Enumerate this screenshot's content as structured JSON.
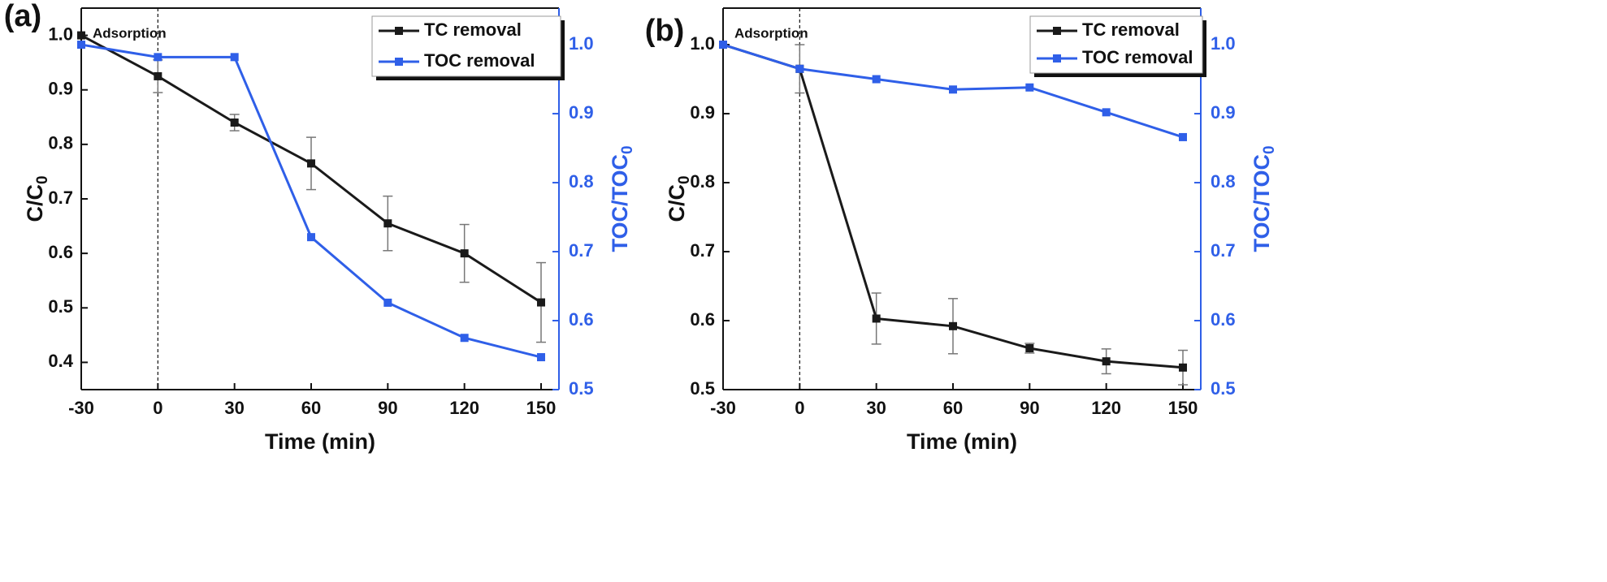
{
  "chart_data": [
    {
      "type": "line",
      "panel_label": "(a)",
      "annotation": {
        "text": "Adsorption",
        "x": 0
      },
      "xlabel": "Time (min)",
      "ylabel": {
        "main": "C/C",
        "sub": "0"
      },
      "y2label": {
        "main": "TOC/TOC",
        "sub": "0"
      },
      "x": [
        -30,
        0,
        30,
        60,
        90,
        120,
        150
      ],
      "series": [
        {
          "name": "TC removal",
          "color": "#1a1a1a",
          "axis": "y",
          "values": [
            1.0,
            0.925,
            0.84,
            0.765,
            0.655,
            0.6,
            0.51
          ],
          "errors": [
            null,
            0.03,
            0.015,
            0.048,
            0.05,
            0.053,
            0.073
          ]
        },
        {
          "name": "TOC removal",
          "color": "#2f5fe8",
          "axis": "y2",
          "values": [
            1.0,
            0.982,
            0.982,
            0.721,
            0.626,
            0.575,
            0.547
          ]
        }
      ],
      "xlim": [
        -30,
        157
      ],
      "xticks": [
        -30,
        0,
        30,
        60,
        90,
        120,
        150
      ],
      "ylim": [
        0.35,
        1.05
      ],
      "yticks": [
        0.4,
        0.5,
        0.6,
        0.7,
        0.8,
        0.9,
        {
          "value": 1,
          "label": "1.0"
        }
      ],
      "y2lim": [
        0.5,
        1.053
      ],
      "y2ticks": [
        0.5,
        0.6,
        0.7,
        0.8,
        0.9,
        {
          "value": 1,
          "label": "1.0"
        }
      ],
      "legend": "upper right"
    },
    {
      "type": "line",
      "panel_label": "(b)",
      "annotation": {
        "text": "Adsorption",
        "x": 0
      },
      "xlabel": "Time (min)",
      "ylabel": {
        "main": "C/C",
        "sub": "0"
      },
      "y2label": {
        "main": "TOC/TOC",
        "sub": "0"
      },
      "x": [
        -30,
        0,
        30,
        60,
        90,
        120,
        150
      ],
      "series": [
        {
          "name": "TC removal",
          "color": "#1a1a1a",
          "axis": "y",
          "values": [
            1.0,
            0.965,
            0.603,
            0.592,
            0.56,
            0.541,
            0.532
          ],
          "errors": [
            null,
            0.035,
            0.037,
            0.04,
            0.007,
            0.018,
            0.025
          ]
        },
        {
          "name": "TOC removal",
          "color": "#2f5fe8",
          "axis": "y2",
          "values": [
            1.0,
            0.965,
            0.95,
            0.935,
            0.938,
            0.902,
            0.866
          ]
        }
      ],
      "xlim": [
        -30,
        157
      ],
      "xticks": [
        -30,
        0,
        30,
        60,
        90,
        120,
        150
      ],
      "ylim": [
        0.5,
        1.053
      ],
      "yticks": [
        0.5,
        0.6,
        0.7,
        0.8,
        0.9,
        {
          "value": 1,
          "label": "1.0"
        }
      ],
      "y2lim": [
        0.5,
        1.053
      ],
      "y2ticks": [
        0.5,
        0.6,
        0.7,
        0.8,
        0.9,
        {
          "value": 1,
          "label": "1.0"
        }
      ],
      "legend": "upper right"
    }
  ]
}
